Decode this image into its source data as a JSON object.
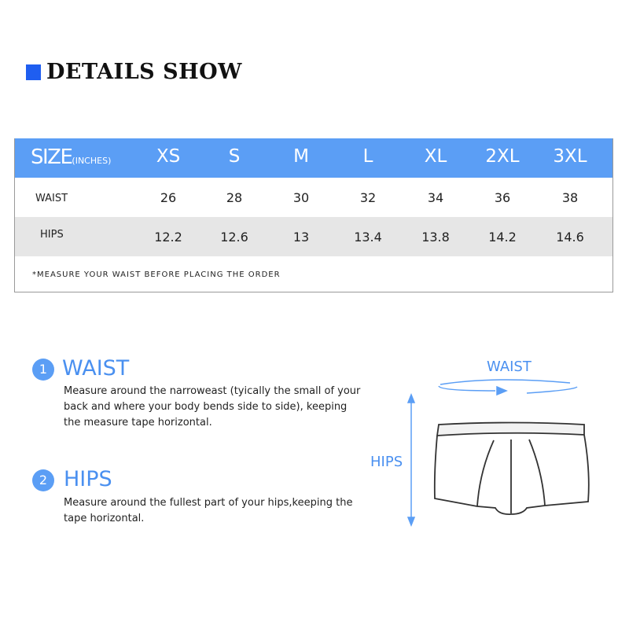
{
  "header": {
    "title": "DETAILS SHOW",
    "accent": "#1f5ef0"
  },
  "table": {
    "header_color": "#5b9ef5",
    "size_label": "SIZE",
    "unit_label": "(INCHES)",
    "sizes": [
      "XS",
      "S",
      "M",
      "L",
      "XL",
      "2XL",
      "3XL"
    ],
    "rows": [
      {
        "label": "WAIST",
        "values": [
          "26",
          "28",
          "30",
          "32",
          "34",
          "36",
          "38"
        ]
      },
      {
        "label": "HIPS",
        "values": [
          "12.2",
          "12.6",
          "13",
          "13.4",
          "13.8",
          "14.2",
          "14.6"
        ]
      }
    ],
    "note": "*MEASURE YOUR WAIST BEFORE PLACING THE ORDER"
  },
  "instructions": [
    {
      "number": "1",
      "title": "WAIST",
      "lines": [
        "Measure around the narroweast (tyically the small of your",
        "back and where your body bends side to side), keeping",
        "the measure tape horizontal."
      ]
    },
    {
      "number": "2",
      "title": "HIPS",
      "lines": [
        "Measure around the fullest part of your hips,keeping the",
        "tape horizontal."
      ]
    }
  ],
  "diagram": {
    "waist_label": "WAIST",
    "hips_label": "HIPS"
  }
}
